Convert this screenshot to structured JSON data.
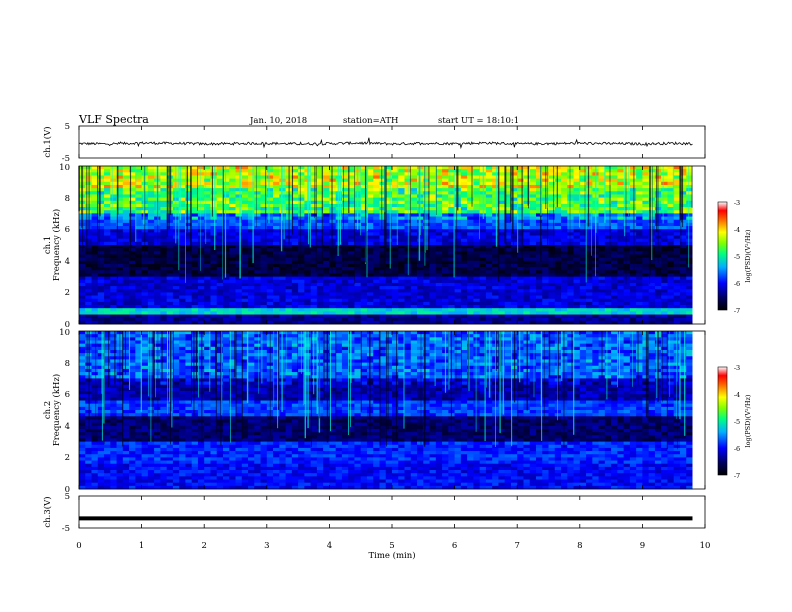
{
  "header": {
    "title": "VLF Spectra",
    "date": "Jan. 10, 2018",
    "station": "station=ATH",
    "start_time": "start UT = 18:10:1"
  },
  "chart_data": [
    {
      "type": "line",
      "panel": "ch1-waveform",
      "ylabel": "ch.1(V)",
      "ylim": [
        -5,
        5
      ],
      "yticks": [
        "5",
        "-5"
      ],
      "x": [
        0,
        0.5,
        1,
        1.5,
        2,
        2.5,
        3,
        3.5,
        4,
        4.5,
        5,
        5.5,
        6,
        6.5,
        7,
        7.5,
        8,
        8.5,
        9,
        9.5,
        9.8
      ],
      "series": [
        {
          "values": [
            -0.5,
            -0.6,
            -0.3,
            -0.4,
            -0.6,
            -0.5,
            -0.4,
            -0.6,
            -0.5,
            -0.3,
            -0.6,
            -0.4,
            -0.5,
            -0.3,
            -0.6,
            -0.5,
            -0.4,
            -0.5,
            -0.6,
            -0.4,
            -0.5
          ]
        }
      ]
    },
    {
      "type": "heatmap",
      "panel": "ch1-spectrogram",
      "ylabel": "Frequency (kHz)",
      "channel_label": "ch.1",
      "ylim": [
        0,
        10
      ],
      "yticks": [
        "0",
        "2",
        "4",
        "6",
        "8",
        "10"
      ],
      "xlim": [
        0,
        10
      ],
      "colorbar": {
        "label": "log(PSD)(V²/Hz)",
        "ticks": [
          "-3",
          "-4",
          "-5",
          "-6",
          "-7"
        ],
        "range": [
          -7,
          -3
        ]
      }
    },
    {
      "type": "heatmap",
      "panel": "ch2-spectrogram",
      "ylabel": "Frequency (kHz)",
      "channel_label": "ch.2",
      "ylim": [
        0,
        10
      ],
      "yticks": [
        "0",
        "2",
        "4",
        "6",
        "8",
        "10"
      ],
      "xlim": [
        0,
        10
      ],
      "colorbar": {
        "label": "log(PSD)(V²/Hz)",
        "ticks": [
          "-3",
          "-4",
          "-5",
          "-6",
          "-7"
        ],
        "range": [
          -7,
          -3
        ]
      }
    },
    {
      "type": "line",
      "panel": "ch3-waveform",
      "ylabel": "ch.3(V)",
      "ylim": [
        -5,
        5
      ],
      "yticks": [
        "5",
        "-5"
      ],
      "x": [
        0,
        9.8
      ],
      "series": [
        {
          "values": [
            -2,
            -2
          ]
        }
      ]
    }
  ],
  "xaxis": {
    "label": "Time (min)",
    "ticks": [
      "0",
      "1",
      "2",
      "3",
      "4",
      "5",
      "6",
      "7",
      "8",
      "9",
      "10"
    ],
    "range": [
      0,
      10
    ]
  },
  "colors": {
    "axis": "#000000",
    "background": "#ffffff"
  }
}
